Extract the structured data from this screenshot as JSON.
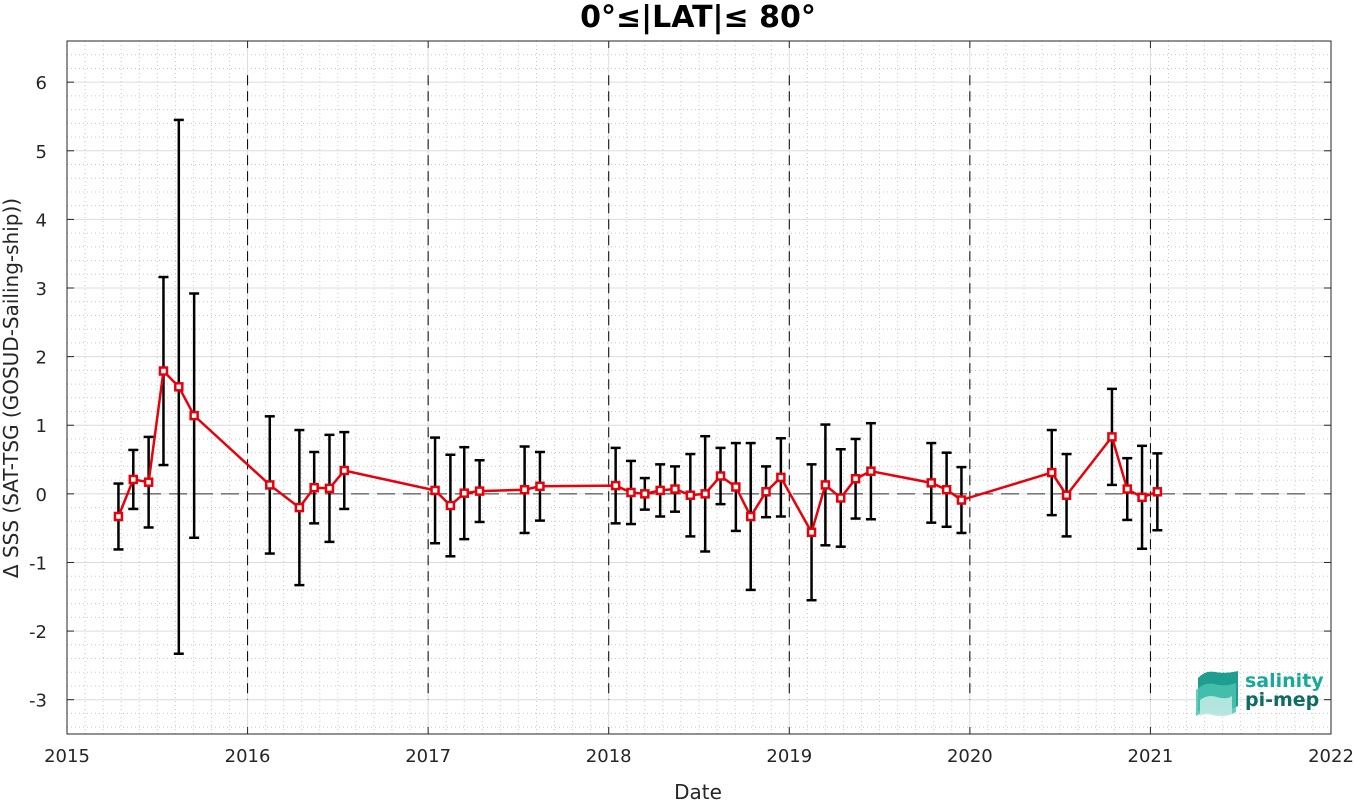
{
  "chart_data": {
    "type": "line",
    "title": "0°≤|LAT|≤ 80°",
    "xlabel": "Date",
    "ylabel": "Δ SSS (SAT-TSG (GOSUD-Sailing-ship))",
    "xlim": [
      "2015-01-01",
      "2022-01-01"
    ],
    "ylim": [
      -3.5,
      6.6
    ],
    "xticks": [
      "2015",
      "2016",
      "2017",
      "2018",
      "2019",
      "2020",
      "2021",
      "2022"
    ],
    "yticks": [
      "-3",
      "-2",
      "-1",
      "0",
      "1",
      "2",
      "3",
      "4",
      "5",
      "6"
    ],
    "grid": "major and minor, dotted",
    "reference_line": 0,
    "year_dividers": [
      "2016-01-01",
      "2017-01-01",
      "2018-01-01",
      "2019-01-01",
      "2020-01-01",
      "2021-01-01"
    ],
    "series": [
      {
        "color": "#e8000b",
        "marker": "square",
        "errorbar_color": "#000000",
        "points": [
          {
            "x": "2015-04-15",
            "y": -0.33,
            "err": 0.48
          },
          {
            "x": "2015-05-15",
            "y": 0.21,
            "err": 0.43
          },
          {
            "x": "2015-06-15",
            "y": 0.17,
            "err": 0.66
          },
          {
            "x": "2015-07-15",
            "y": 1.79,
            "err": 1.37
          },
          {
            "x": "2015-08-15",
            "y": 1.56,
            "err": 3.89
          },
          {
            "x": "2015-09-15",
            "y": 1.14,
            "err": 1.78
          },
          {
            "x": "2016-02-15",
            "y": 0.13,
            "err": 1.0
          },
          {
            "x": "2016-04-15",
            "y": -0.2,
            "err": 1.13
          },
          {
            "x": "2016-05-15",
            "y": 0.09,
            "err": 0.52
          },
          {
            "x": "2016-06-15",
            "y": 0.08,
            "err": 0.78
          },
          {
            "x": "2016-07-15",
            "y": 0.34,
            "err": 0.56
          },
          {
            "x": "2017-01-15",
            "y": 0.05,
            "err": 0.77
          },
          {
            "x": "2017-02-15",
            "y": -0.17,
            "err": 0.74
          },
          {
            "x": "2017-03-15",
            "y": 0.01,
            "err": 0.67
          },
          {
            "x": "2017-04-15",
            "y": 0.04,
            "err": 0.45
          },
          {
            "x": "2017-07-15",
            "y": 0.06,
            "err": 0.63
          },
          {
            "x": "2017-08-15",
            "y": 0.11,
            "err": 0.5
          },
          {
            "x": "2018-01-15",
            "y": 0.12,
            "err": 0.55
          },
          {
            "x": "2018-02-15",
            "y": 0.02,
            "err": 0.46
          },
          {
            "x": "2018-03-15",
            "y": 0.0,
            "err": 0.23
          },
          {
            "x": "2018-04-15",
            "y": 0.05,
            "err": 0.38
          },
          {
            "x": "2018-05-15",
            "y": 0.07,
            "err": 0.33
          },
          {
            "x": "2018-06-15",
            "y": -0.02,
            "err": 0.6
          },
          {
            "x": "2018-07-15",
            "y": 0.0,
            "err": 0.84
          },
          {
            "x": "2018-08-15",
            "y": 0.26,
            "err": 0.41
          },
          {
            "x": "2018-09-15",
            "y": 0.1,
            "err": 0.64
          },
          {
            "x": "2018-10-15",
            "y": -0.33,
            "err": 1.07
          },
          {
            "x": "2018-11-15",
            "y": 0.03,
            "err": 0.37
          },
          {
            "x": "2018-12-15",
            "y": 0.24,
            "err": 0.57
          },
          {
            "x": "2019-02-15",
            "y": -0.56,
            "err": 0.99
          },
          {
            "x": "2019-03-15",
            "y": 0.13,
            "err": 0.88
          },
          {
            "x": "2019-04-15",
            "y": -0.06,
            "err": 0.71
          },
          {
            "x": "2019-05-15",
            "y": 0.22,
            "err": 0.58
          },
          {
            "x": "2019-06-15",
            "y": 0.33,
            "err": 0.7
          },
          {
            "x": "2019-10-15",
            "y": 0.16,
            "err": 0.58
          },
          {
            "x": "2019-11-15",
            "y": 0.06,
            "err": 0.54
          },
          {
            "x": "2019-12-15",
            "y": -0.09,
            "err": 0.48
          },
          {
            "x": "2020-06-15",
            "y": 0.31,
            "err": 0.62
          },
          {
            "x": "2020-07-15",
            "y": -0.02,
            "err": 0.6
          },
          {
            "x": "2020-10-15",
            "y": 0.83,
            "err": 0.7
          },
          {
            "x": "2020-11-15",
            "y": 0.07,
            "err": 0.45
          },
          {
            "x": "2020-12-15",
            "y": -0.05,
            "err": 0.75
          },
          {
            "x": "2021-01-15",
            "y": 0.03,
            "err": 0.56
          }
        ]
      }
    ]
  },
  "logo": {
    "line1": "salinity",
    "line2": "pi-mep",
    "color1": "#1aa89a",
    "color2": "#0f6b63"
  }
}
